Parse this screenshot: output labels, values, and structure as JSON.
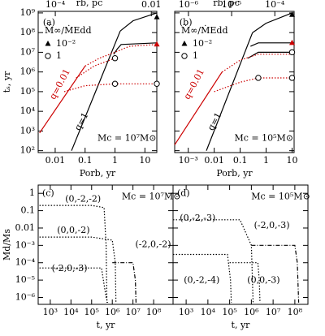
{
  "chart_data": [
    {
      "type": "line",
      "label": "(a)",
      "xlabel": "Porb, yr",
      "ylabel": "tₛ, yr",
      "x2label": "rb, pc",
      "log": true,
      "xlim": [
        0.0027,
        25
      ],
      "ylim": [
        80,
        1200000000.0
      ],
      "x2lim": [
        4.4e-05,
        0.013
      ],
      "xticks": [
        0.01,
        0.1,
        1,
        10
      ],
      "x2ticks": [
        {
          "value": 0.0001,
          "label": "10⁻⁴"
        },
        0.01
      ],
      "yticks": [
        {
          "value": 100,
          "label": "10²"
        },
        {
          "value": 1000,
          "label": "10³"
        },
        {
          "value": 10000,
          "label": "10⁴"
        },
        {
          "value": 100000,
          "label": "10⁵"
        },
        {
          "value": 1000000,
          "label": "10⁶"
        },
        {
          "value": 10000000,
          "label": "10⁷"
        },
        {
          "value": 100000000,
          "label": "10⁸"
        },
        {
          "value": 1000000000,
          "label": "10⁹"
        }
      ],
      "legend": {
        "title": "Ṁ∞/ṀEdd",
        "entries": [
          {
            "marker": "triangle",
            "label": "10⁻²"
          },
          {
            "marker": "circle",
            "label": "1"
          }
        ]
      },
      "annotations": [
        {
          "text": "(a)",
          "color": "#000000"
        },
        {
          "text": "Mc = 10⁷M⊙",
          "color": "#000000"
        },
        {
          "text": "q=0.01",
          "color": "#cc0000"
        },
        {
          "text": "q=1",
          "color": "#000000"
        }
      ],
      "series": [
        {
          "color": "#000000",
          "style": "solid",
          "x": [
            0.035,
            1.5
          ],
          "values": [
            100,
            120000000
          ]
        },
        {
          "color": "#000000",
          "style": "solid",
          "x": [
            1.5,
            4,
            25
          ],
          "values": [
            120000000,
            400000000,
            1000000000
          ]
        },
        {
          "color": "#000000",
          "style": "solid",
          "x": [
            0.9,
            1.2,
            1.6,
            25
          ],
          "values": [
            8000000,
            15000000,
            25000000,
            30000000
          ]
        },
        {
          "color": "#cc0000",
          "style": "solid",
          "x": [
            0.003,
            0.1
          ],
          "values": [
            800,
            2000000
          ]
        },
        {
          "color": "#cc0000",
          "style": "dotted",
          "x": [
            0.1,
            0.3,
            1,
            3,
            25
          ],
          "values": [
            2000000,
            5000000,
            10000000,
            20000000,
            25000000
          ]
        },
        {
          "color": "#cc0000",
          "style": "dotted",
          "x": [
            0.05,
            0.2,
            1
          ],
          "values": [
            500000,
            2000000,
            5000000
          ]
        },
        {
          "color": "#cc0000",
          "style": "dotted",
          "x": [
            0.02,
            0.1,
            1,
            25
          ],
          "values": [
            100000,
            200000,
            250000,
            250000
          ]
        }
      ],
      "markers": [
        {
          "shape": "triangle",
          "color": "#000000",
          "x": 25,
          "y": 600000000
        },
        {
          "shape": "triangle",
          "color": "#cc0000",
          "x": 25,
          "y": 25000000
        },
        {
          "shape": "circle",
          "color": "#000000",
          "x": 1,
          "y": 5000000
        },
        {
          "shape": "circle",
          "color": "#000000",
          "x": 1,
          "y": 250000
        },
        {
          "shape": "circle",
          "color": "#000000",
          "x": 25,
          "y": 250000
        }
      ]
    },
    {
      "type": "line",
      "label": "(b)",
      "xlabel": "Porb, yr",
      "x2label": "rb, pc",
      "sharey": true,
      "log": true,
      "xlim": [
        0.0003,
        12
      ],
      "ylim": [
        80,
        1200000000.0
      ],
      "x2lim": [
        4.8e-07,
        0.00028
      ],
      "xticks": [
        {
          "value": 0.001,
          "label": "10⁻³"
        },
        0.01,
        0.1,
        1,
        10
      ],
      "x2ticks": [
        {
          "value": 1e-06,
          "label": "10⁻⁶"
        },
        {
          "value": 1e-05,
          "label": "10⁻⁵"
        },
        {
          "value": 0.0001,
          "label": "10⁻⁴"
        }
      ],
      "legend": {
        "title": "Ṁ∞/ṀEdd",
        "entries": [
          {
            "marker": "triangle",
            "label": "10⁻²"
          },
          {
            "marker": "circle",
            "label": "1"
          }
        ]
      },
      "annotations": [
        {
          "text": "(b)",
          "color": "#000000"
        },
        {
          "text": "Mc = 10⁵M⊙",
          "color": "#000000"
        },
        {
          "text": "q=0.01",
          "color": "#cc0000"
        },
        {
          "text": "q=1",
          "color": "#000000"
        }
      ],
      "series": [
        {
          "color": "#000000",
          "style": "solid",
          "x": [
            0.005,
            0.3
          ],
          "values": [
            100,
            100000000
          ]
        },
        {
          "color": "#000000",
          "style": "solid",
          "x": [
            0.3,
            1,
            10
          ],
          "values": [
            100000000,
            300000000,
            1000000000
          ]
        },
        {
          "color": "#000000",
          "style": "solid",
          "x": [
            0.25,
            0.5,
            10
          ],
          "values": [
            20000000,
            30000000,
            30000000
          ]
        },
        {
          "color": "#000000",
          "style": "solid",
          "x": [
            0.2,
            0.5,
            1,
            10
          ],
          "values": [
            5000000,
            10000000,
            10000000,
            10000000
          ]
        },
        {
          "color": "#cc0000",
          "style": "solid",
          "x": [
            0.0003,
            0.02
          ],
          "values": [
            200,
            1000000
          ]
        },
        {
          "color": "#cc0000",
          "style": "dotted",
          "x": [
            0.02,
            0.1,
            0.5,
            10
          ],
          "values": [
            1000000,
            4000000,
            8000000,
            8000000
          ]
        },
        {
          "color": "#cc0000",
          "style": "dotted",
          "x": [
            0.01,
            0.1,
            0.5,
            10
          ],
          "values": [
            100000,
            300000,
            500000,
            500000
          ]
        }
      ],
      "markers": [
        {
          "shape": "triangle",
          "color": "#000000",
          "x": 10,
          "y": 800000000
        },
        {
          "shape": "triangle",
          "color": "#cc0000",
          "x": 10,
          "y": 30000000
        },
        {
          "shape": "circle",
          "color": "#000000",
          "x": 10,
          "y": 10000000
        },
        {
          "shape": "circle",
          "color": "#000000",
          "x": 0.5,
          "y": 500000
        },
        {
          "shape": "circle",
          "color": "#000000",
          "x": 10,
          "y": 500000
        }
      ]
    },
    {
      "type": "line",
      "label": "(c)",
      "xlabel": "t, yr",
      "ylabel": "Md/Ms",
      "log": true,
      "xlim": [
        260,
        870000000
      ],
      "ylim": [
        4e-07,
        3
      ],
      "xticks": [
        {
          "value": 1000,
          "label": "10³"
        },
        {
          "value": 10000,
          "label": "10⁴"
        },
        {
          "value": 100000,
          "label": "10⁵"
        },
        {
          "value": 1000000,
          "label": "10⁶"
        },
        {
          "value": 10000000,
          "label": "10⁷"
        },
        {
          "value": 100000000,
          "label": "10⁸"
        }
      ],
      "yticks": [
        1,
        0.1,
        0.01,
        {
          "value": 0.001,
          "label": "10⁻³"
        },
        {
          "value": 0.0001,
          "label": "10⁻⁴"
        },
        {
          "value": 1e-05,
          "label": "10⁻⁵"
        },
        {
          "value": 1e-06,
          "label": "10⁻⁶"
        }
      ],
      "annotations": [
        {
          "text": "(c)",
          "color": "#000000"
        },
        {
          "text": "Mc = 10⁷M⊙",
          "color": "#000000"
        },
        {
          "text": "(0,-2,-2)",
          "color": "#000000"
        },
        {
          "text": "(0,0,-2)",
          "color": "#000000"
        },
        {
          "text": "(-2,0,-2)",
          "color": "#000000"
        },
        {
          "text": "(-2,0,-3)",
          "color": "#000000"
        }
      ],
      "series": [
        {
          "color": "#000000",
          "style": "dotted",
          "x": [
            300,
            100000,
            400000,
            500000,
            550000
          ],
          "values": [
            0.2,
            0.2,
            0.15,
            0.001,
            5e-07
          ]
        },
        {
          "color": "#000000",
          "style": "dotted",
          "x": [
            300,
            100000,
            1000000,
            1400000,
            1500000
          ],
          "values": [
            0.003,
            0.003,
            0.002,
            0.0001,
            5e-07
          ]
        },
        {
          "color": "#000000",
          "style": "dashdot",
          "x": [
            1000000,
            10000000,
            13000000,
            14000000
          ],
          "values": [
            0.0001,
            0.0001,
            1e-05,
            5e-07
          ]
        },
        {
          "color": "#000000",
          "style": "dotted",
          "x": [
            300,
            300000,
            500000,
            600000
          ],
          "values": [
            5e-05,
            5e-05,
            1e-06,
            5e-07
          ]
        }
      ]
    },
    {
      "type": "line",
      "label": "(d)",
      "xlabel": "t, yr",
      "sharey": true,
      "log": true,
      "xlim": [
        250,
        400000000
      ],
      "ylim": [
        4e-07,
        3
      ],
      "xticks": [
        {
          "value": 1000,
          "label": "10³"
        },
        {
          "value": 10000,
          "label": "10⁴"
        },
        {
          "value": 100000,
          "label": "10⁵"
        },
        {
          "value": 1000000,
          "label": "10⁶"
        },
        {
          "value": 10000000,
          "label": "10⁷"
        },
        {
          "value": 100000000,
          "label": "10⁸"
        }
      ],
      "annotations": [
        {
          "text": "(d)",
          "color": "#000000"
        },
        {
          "text": "Mc = 10⁵M⊙",
          "color": "#000000"
        },
        {
          "text": "(0,-2,-3)",
          "color": "#000000"
        },
        {
          "text": "(-2,0,-3)",
          "color": "#000000"
        },
        {
          "text": "(0,-2,-4)",
          "color": "#000000"
        },
        {
          "text": "(0,0,-3)",
          "color": "#000000"
        }
      ],
      "series": [
        {
          "color": "#000000",
          "style": "dotted",
          "x": [
            250,
            300000,
            1000000,
            1200000
          ],
          "values": [
            0.03,
            0.03,
            0.001,
            5e-07
          ]
        },
        {
          "color": "#000000",
          "style": "dashdot",
          "x": [
            1000000,
            100000000,
            130000000,
            150000000
          ],
          "values": [
            0.001,
            0.001,
            0.0001,
            5e-07
          ]
        },
        {
          "color": "#000000",
          "style": "dotted",
          "x": [
            250,
            80000,
            110000,
            120000
          ],
          "values": [
            0.0003,
            0.0003,
            1e-05,
            5e-07
          ]
        },
        {
          "color": "#000000",
          "style": "dotted",
          "x": [
            100000,
            2000000,
            2300000,
            2500000
          ],
          "values": [
            0.0001,
            0.0001,
            1e-05,
            5e-07
          ]
        }
      ]
    }
  ]
}
